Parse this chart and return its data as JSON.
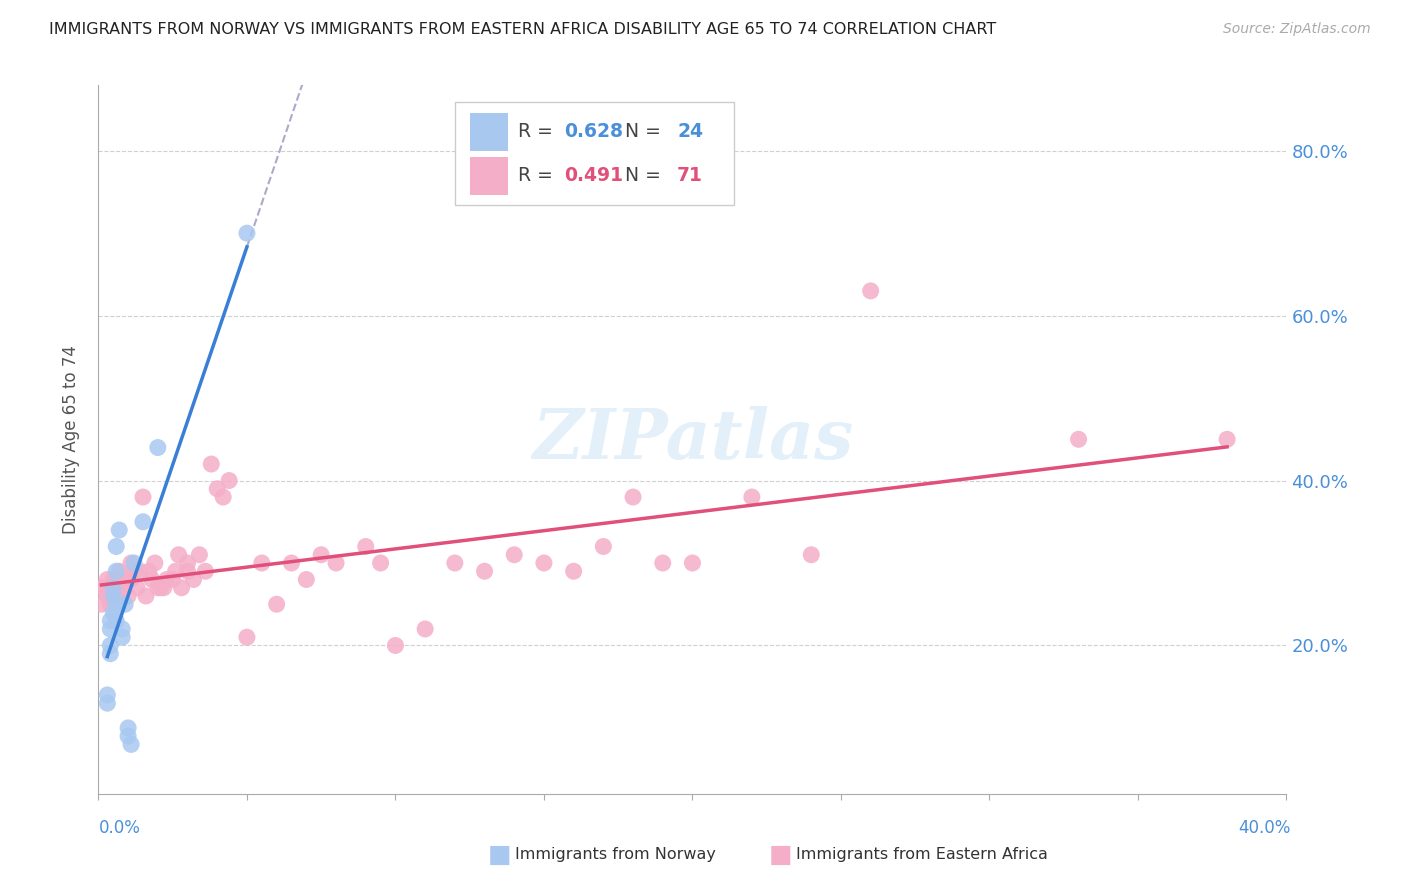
{
  "title": "IMMIGRANTS FROM NORWAY VS IMMIGRANTS FROM EASTERN AFRICA DISABILITY AGE 65 TO 74 CORRELATION CHART",
  "source": "Source: ZipAtlas.com",
  "ylabel": "Disability Age 65 to 74",
  "ytick_vals": [
    0.2,
    0.4,
    0.6,
    0.8
  ],
  "ytick_labels": [
    "20.0%",
    "40.0%",
    "60.0%",
    "80.0%"
  ],
  "xlim": [
    0.0,
    0.4
  ],
  "ylim": [
    0.02,
    0.88
  ],
  "norway_R": 0.628,
  "norway_N": 24,
  "eastafrica_R": 0.491,
  "eastafrica_N": 71,
  "norway_dot_color": "#a8c8f0",
  "norway_line_color": "#3a7fd5",
  "norway_dash_color": "#aaaacc",
  "eastafrica_dot_color": "#f5aec8",
  "eastafrica_line_color": "#e0507a",
  "legend_norway_color": "#a8c8f0",
  "legend_ea_color": "#f5aec8",
  "r_n_color_norway": "#4a90d9",
  "r_n_color_ea": "#e0507a",
  "norway_x": [
    0.003,
    0.003,
    0.004,
    0.004,
    0.004,
    0.004,
    0.005,
    0.005,
    0.005,
    0.006,
    0.006,
    0.006,
    0.006,
    0.007,
    0.008,
    0.008,
    0.009,
    0.01,
    0.01,
    0.011,
    0.012,
    0.015,
    0.02,
    0.05
  ],
  "norway_y": [
    0.14,
    0.13,
    0.23,
    0.22,
    0.2,
    0.19,
    0.27,
    0.26,
    0.24,
    0.32,
    0.29,
    0.25,
    0.23,
    0.34,
    0.22,
    0.21,
    0.25,
    0.1,
    0.09,
    0.08,
    0.3,
    0.35,
    0.44,
    0.7
  ],
  "eastafrica_x": [
    0.001,
    0.001,
    0.002,
    0.003,
    0.003,
    0.004,
    0.004,
    0.005,
    0.005,
    0.005,
    0.006,
    0.006,
    0.007,
    0.007,
    0.008,
    0.008,
    0.009,
    0.01,
    0.01,
    0.011,
    0.011,
    0.012,
    0.013,
    0.014,
    0.015,
    0.016,
    0.017,
    0.018,
    0.019,
    0.02,
    0.021,
    0.022,
    0.023,
    0.025,
    0.026,
    0.027,
    0.028,
    0.03,
    0.03,
    0.032,
    0.034,
    0.036,
    0.038,
    0.04,
    0.042,
    0.044,
    0.05,
    0.055,
    0.06,
    0.065,
    0.07,
    0.075,
    0.08,
    0.09,
    0.095,
    0.1,
    0.11,
    0.12,
    0.13,
    0.14,
    0.15,
    0.16,
    0.17,
    0.18,
    0.19,
    0.2,
    0.22,
    0.24,
    0.26,
    0.33,
    0.38
  ],
  "eastafrica_y": [
    0.27,
    0.25,
    0.27,
    0.28,
    0.26,
    0.27,
    0.25,
    0.28,
    0.27,
    0.26,
    0.28,
    0.26,
    0.29,
    0.27,
    0.28,
    0.26,
    0.28,
    0.28,
    0.26,
    0.3,
    0.28,
    0.29,
    0.27,
    0.29,
    0.38,
    0.26,
    0.29,
    0.28,
    0.3,
    0.27,
    0.27,
    0.27,
    0.28,
    0.28,
    0.29,
    0.31,
    0.27,
    0.29,
    0.3,
    0.28,
    0.31,
    0.29,
    0.42,
    0.39,
    0.38,
    0.4,
    0.21,
    0.3,
    0.25,
    0.3,
    0.28,
    0.31,
    0.3,
    0.32,
    0.3,
    0.2,
    0.22,
    0.3,
    0.29,
    0.31,
    0.3,
    0.29,
    0.32,
    0.38,
    0.3,
    0.3,
    0.38,
    0.31,
    0.63,
    0.45,
    0.45
  ]
}
